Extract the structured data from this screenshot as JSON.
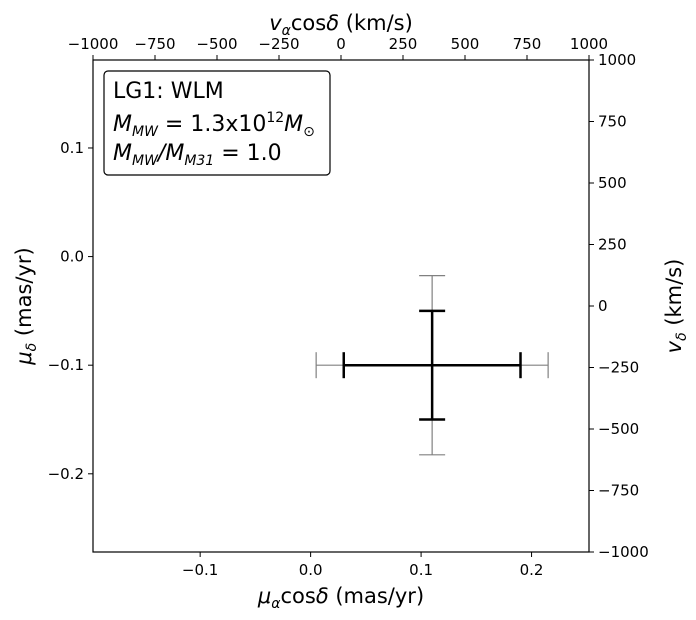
{
  "chart_data": {
    "type": "scatter",
    "title": "",
    "xlabel": "μαcosδ (mas/yr)",
    "ylabel": "μδ (mas/yr)",
    "xlabel_top": "vαcosδ (km/s)",
    "ylabel_right": "vδ (km/s)",
    "xlim": [
      -0.197,
      0.252
    ],
    "ylim": [
      -0.272,
      0.181
    ],
    "xlim_top": [
      -1000,
      1000
    ],
    "ylim_right": [
      -1000,
      1000
    ],
    "x_ticks": [
      -0.1,
      0.0,
      0.1,
      0.2
    ],
    "x_tick_labels": [
      "−0.1",
      "0.0",
      "0.1",
      "0.2"
    ],
    "y_ticks": [
      -0.2,
      -0.1,
      0.0,
      0.1
    ],
    "y_tick_labels": [
      "−0.2",
      "−0.1",
      "0.0",
      "0.1"
    ],
    "x_top_ticks": [
      -1000,
      -750,
      -500,
      -250,
      0,
      250,
      500,
      750,
      1000
    ],
    "x_top_tick_labels": [
      "−1000",
      "−750",
      "−500",
      "−250",
      "0",
      "250",
      "500",
      "750",
      "1000"
    ],
    "y_right_ticks": [
      -1000,
      -750,
      -500,
      -250,
      0,
      250,
      500,
      750,
      1000
    ],
    "y_right_tick_labels": [
      "−1000",
      "−750",
      "−500",
      "−250",
      "0",
      "250",
      "500",
      "750",
      "1000"
    ],
    "grid": false,
    "legend_position": "top-left",
    "legend": {
      "line1": "LG1: WLM",
      "line2_main": "M",
      "line2_sub": "MW",
      "line2_eq": " = 1.3x10",
      "line2_sup": "12",
      "line2_unit": "M",
      "line2_unit_sub": "⊙",
      "line3_main": "M",
      "line3_sub": "MW",
      "line3_slash": "/M",
      "line3_sub2": "M31",
      "line3_eq": " = 1.0"
    },
    "series": [
      {
        "x": 0.11,
        "y": -0.1,
        "xerr": 0.08,
        "yerr": 0.05,
        "color": "#000000"
      },
      {
        "x": 0.11,
        "y": -0.1,
        "xerr": 0.105,
        "yerr": 0.0825,
        "color": "#808080"
      }
    ]
  }
}
